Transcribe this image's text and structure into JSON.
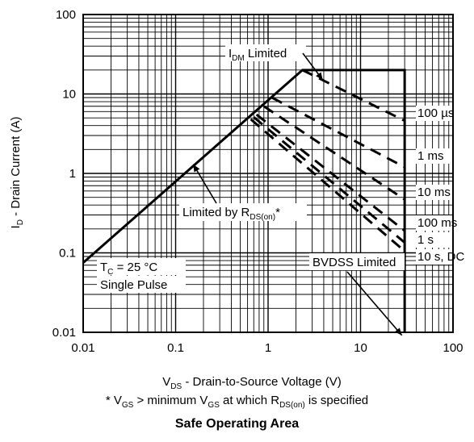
{
  "chart_data": {
    "type": "line",
    "title": "Safe Operating Area",
    "footnote": {
      "prefix": "* V",
      "sub1": "GS",
      "mid": " > minimum V",
      "sub2": "GS",
      "mid2": " at which R",
      "sub3": "DS(on)",
      "suffix": " is specified"
    },
    "xlabel": {
      "main": "V",
      "sub": "DS",
      "rest": " - Drain-to-Source Voltage (V)"
    },
    "ylabel": {
      "main": "I",
      "sub": "D",
      "rest": " - Drain Current (A)"
    },
    "x_scale": "log",
    "y_scale": "log",
    "xlim": [
      0.01,
      100
    ],
    "ylim": [
      0.01,
      100
    ],
    "x_ticks": [
      {
        "v": 0.01,
        "label": "0.01"
      },
      {
        "v": 0.1,
        "label": "0.1"
      },
      {
        "v": 1,
        "label": "1"
      },
      {
        "v": 10,
        "label": "10"
      },
      {
        "v": 100,
        "label": "100"
      }
    ],
    "y_ticks": [
      {
        "v": 100,
        "label": "100"
      },
      {
        "v": 10,
        "label": "10"
      },
      {
        "v": 1,
        "label": "1"
      },
      {
        "v": 0.1,
        "label": "0.1"
      },
      {
        "v": 0.01,
        "label": "0.01"
      }
    ],
    "grid": true,
    "boundary": {
      "name": "Limited by RDS(on) / IDM / BVDSS",
      "points": [
        [
          0.01,
          0.075
        ],
        [
          2.35,
          20
        ],
        [
          30,
          20
        ],
        [
          30,
          0.01
        ]
      ]
    },
    "series": [
      {
        "label": "100 µs",
        "style": "dashed",
        "points": [
          [
            2.35,
            20
          ],
          [
            30,
            4.6
          ]
        ]
      },
      {
        "label": "1 ms",
        "style": "dashed",
        "points": [
          [
            1.1,
            9.0
          ],
          [
            30,
            1.2
          ]
        ]
      },
      {
        "label": "10 ms",
        "style": "dashed",
        "points": [
          [
            0.9,
            7.0
          ],
          [
            30,
            0.47
          ]
        ]
      },
      {
        "label": "100 ms",
        "style": "dashed",
        "points": [
          [
            0.75,
            5.5
          ],
          [
            30,
            0.19
          ]
        ]
      },
      {
        "label": "1 s",
        "style": "dashed",
        "points": [
          [
            0.7,
            5.1
          ],
          [
            30,
            0.135
          ]
        ]
      },
      {
        "label": "10 s, DC",
        "style": "dashed",
        "points": [
          [
            0.65,
            4.8
          ],
          [
            30,
            0.105
          ]
        ]
      }
    ],
    "annotations": [
      {
        "id": "idm",
        "main": "I",
        "sub": "DM",
        "rest": " Limited",
        "arrow_to": [
          3.9,
          14
        ]
      },
      {
        "id": "rds",
        "main": "Limited by R",
        "sub": "DS(on)",
        "rest": "*",
        "arrow_to": [
          0.155,
          1.3
        ]
      },
      {
        "id": "bvdss",
        "main": "BVDSS Limited",
        "sub": "",
        "rest": "",
        "arrow_to": [
          28,
          0.013
        ]
      },
      {
        "id": "cond1",
        "main": "T",
        "sub": "C",
        "rest": " = 25 °C"
      },
      {
        "id": "cond2",
        "main": "Single Pulse",
        "sub": "",
        "rest": ""
      }
    ]
  }
}
